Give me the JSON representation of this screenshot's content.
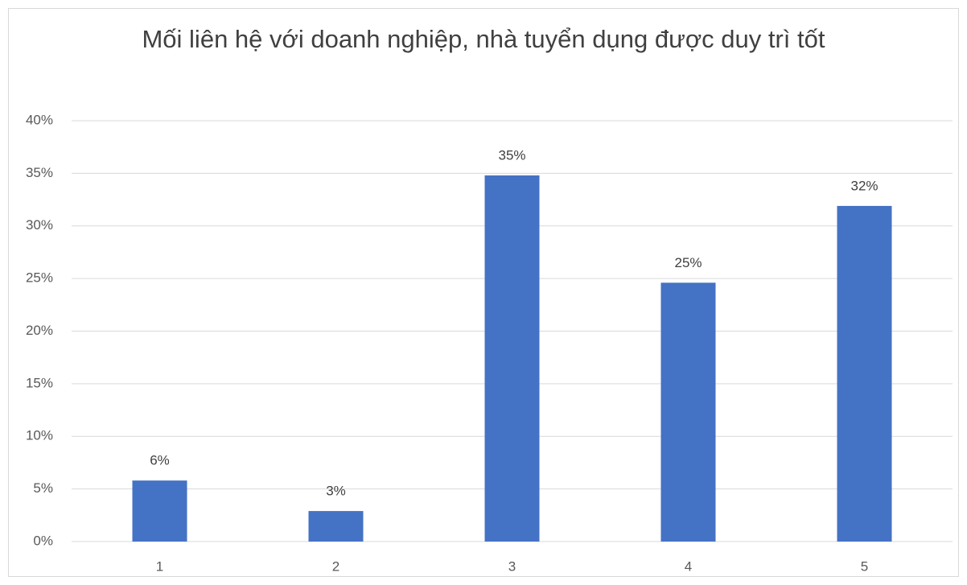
{
  "chart_data": {
    "type": "bar",
    "title": "Mối liên hệ với doanh nghiệp, nhà tuyển dụng được duy trì tốt",
    "categories": [
      "1",
      "2",
      "3",
      "4",
      "5"
    ],
    "values": [
      5.8,
      2.9,
      34.8,
      24.6,
      31.9
    ],
    "value_labels": [
      "6%",
      "3%",
      "35%",
      "25%",
      "32%"
    ],
    "color": "#4472c4",
    "ylim": [
      0,
      40
    ],
    "yticks": [
      {
        "value": 0,
        "label": "0%"
      },
      {
        "value": 5,
        "label": "5%"
      },
      {
        "value": 10,
        "label": "10%"
      },
      {
        "value": 15,
        "label": "15%"
      },
      {
        "value": 20,
        "label": "20%"
      },
      {
        "value": 25,
        "label": "25%"
      },
      {
        "value": 30,
        "label": "30%"
      },
      {
        "value": 35,
        "label": "35%"
      },
      {
        "value": 40,
        "label": "40%"
      }
    ],
    "grid": true
  }
}
